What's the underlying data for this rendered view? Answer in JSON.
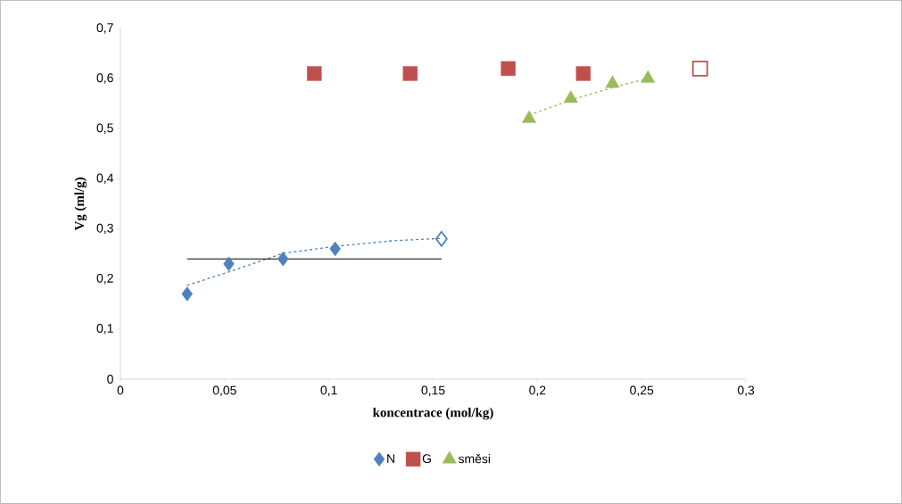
{
  "chart_data": {
    "type": "scatter",
    "xlabel": "koncentrace (mol/kg)",
    "ylabel": "Vg (ml/g)",
    "xlim": [
      0,
      0.3
    ],
    "ylim": [
      0,
      0.7
    ],
    "xticks": [
      0,
      {
        "value": 0.05,
        "label": "0,05"
      },
      {
        "value": 0.1,
        "label": "0,1"
      },
      {
        "value": 0.15,
        "label": "0,15"
      },
      {
        "value": 0.2,
        "label": "0,2"
      },
      {
        "value": 0.25,
        "label": "0,25"
      },
      {
        "value": 0.3,
        "label": "0,3"
      }
    ],
    "yticks": [
      0,
      {
        "value": 0.1,
        "label": "0,1"
      },
      {
        "value": 0.2,
        "label": "0,2"
      },
      {
        "value": 0.3,
        "label": "0,3"
      },
      {
        "value": 0.4,
        "label": "0,4"
      },
      {
        "value": 0.5,
        "label": "0,5"
      },
      {
        "value": 0.6,
        "label": "0,6"
      },
      {
        "value": 0.7,
        "label": "0,7"
      }
    ],
    "grid": false,
    "legend": "bottom",
    "series": [
      {
        "name": "N",
        "color": "#4f81bd",
        "marker": "diamond",
        "x": [
          0.032,
          0.052,
          0.078,
          0.103
        ],
        "values": [
          0.17,
          0.23,
          0.24,
          0.26
        ]
      },
      {
        "name": "G",
        "color": "#c0504d",
        "marker": "square",
        "x": [
          0.093,
          0.139,
          0.186,
          0.222
        ],
        "values": [
          0.61,
          0.61,
          0.62,
          0.61
        ]
      },
      {
        "name": "směsi",
        "color": "#9bbb59",
        "marker": "triangle",
        "x": [
          0.196,
          0.216,
          0.236,
          0.253
        ],
        "values": [
          0.52,
          0.56,
          0.59,
          0.6
        ]
      },
      {
        "color": "#4f81bd",
        "marker": "diamond",
        "x": [
          0.154
        ],
        "values": [
          0.28
        ]
      },
      {
        "color": "#c0504d",
        "marker": "square",
        "x": [
          0.278
        ],
        "values": [
          0.62
        ]
      },
      {
        "type": "line",
        "color": "#4f81bd",
        "marker": "none",
        "line_style": "dashed",
        "x": [
          0.032,
          0.052,
          0.078,
          0.103,
          0.13,
          0.154
        ],
        "values": [
          0.187,
          0.214,
          0.251,
          0.265,
          0.276,
          0.281
        ]
      },
      {
        "type": "line",
        "color": "#9bbb59",
        "marker": "none",
        "line_style": "dashed",
        "x": [
          0.196,
          0.216,
          0.236,
          0.253
        ],
        "values": [
          0.527,
          0.557,
          0.582,
          0.6
        ]
      },
      {
        "type": "line",
        "color": "#000000",
        "marker": "none",
        "line_style": "solid",
        "x": [
          0.032,
          0.154
        ],
        "values": [
          0.24,
          0.24
        ]
      }
    ]
  }
}
